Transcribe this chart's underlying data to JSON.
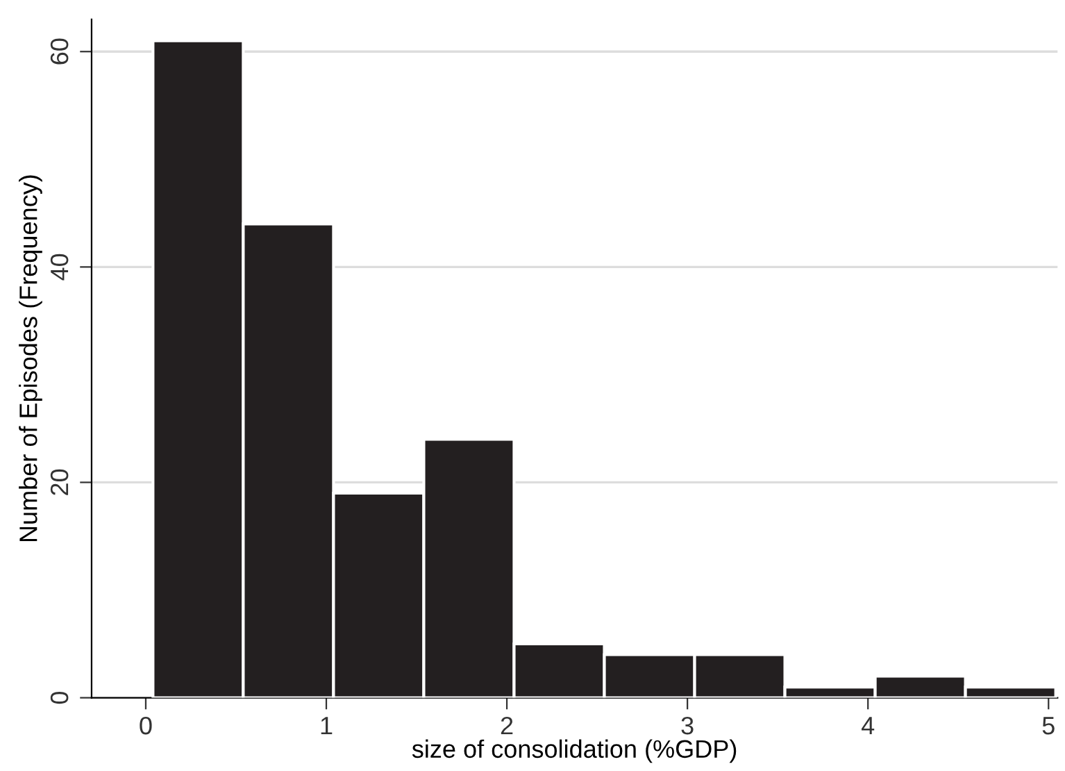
{
  "chart_data": {
    "type": "histogram",
    "xlabel": "size of consolidation (%GDP)",
    "ylabel": "Number of Episodes (Frequency)",
    "bins": [
      0.04,
      0.54,
      1.04,
      1.54,
      2.04,
      2.54,
      3.04,
      3.54,
      4.04,
      4.54,
      5.04
    ],
    "values": [
      61,
      44,
      19,
      24,
      5,
      4,
      4,
      1,
      2,
      1
    ],
    "color": "#231f20",
    "xlim": [
      -0.3,
      5.05
    ],
    "xticks": [
      0,
      1,
      2,
      3,
      4,
      5
    ],
    "ylim": [
      0,
      63
    ],
    "yticks": [
      0,
      20,
      40,
      60
    ],
    "grid": "y"
  }
}
